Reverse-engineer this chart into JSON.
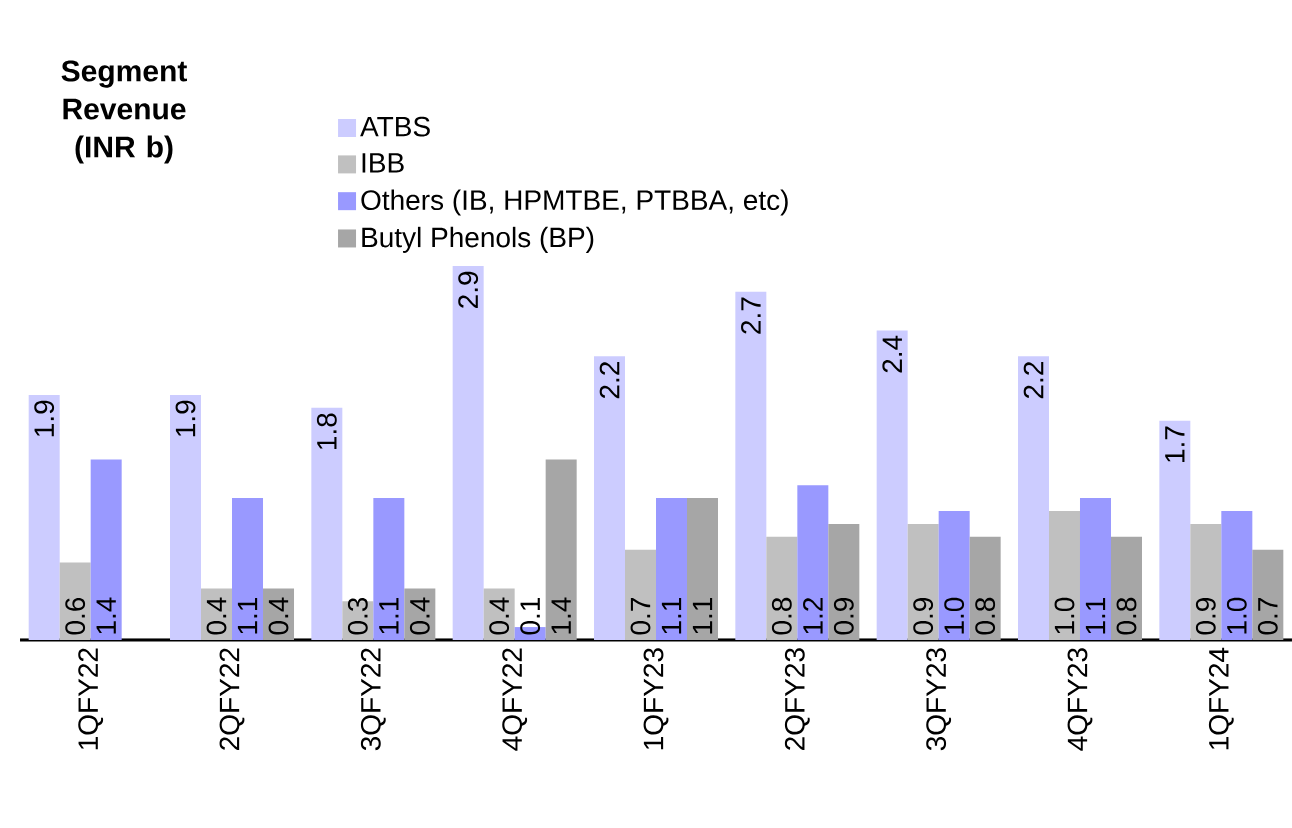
{
  "chart_data": {
    "type": "bar",
    "title": "Segment Revenue (INR b)",
    "categories": [
      "1QFY22",
      "2QFY22",
      "3QFY22",
      "4QFY22",
      "1QFY23",
      "2QFY23",
      "3QFY23",
      "4QFY23",
      "1QFY24"
    ],
    "series": [
      {
        "name": "ATBS",
        "color": "#ccccff",
        "values": [
          1.9,
          1.9,
          1.8,
          2.9,
          2.2,
          2.7,
          2.4,
          2.2,
          1.7
        ],
        "value_labels": [
          "1.9",
          "1.9",
          "1.8",
          "2.9",
          "2.2",
          "2.7",
          "2.4",
          "2.2",
          "1.7"
        ]
      },
      {
        "name": "IBB",
        "color": "#c0c0c0",
        "values": [
          0.6,
          0.4,
          0.3,
          0.4,
          0.7,
          0.8,
          0.9,
          1.0,
          0.9
        ],
        "value_labels": [
          "0.6",
          "0.4",
          "0.3",
          "0.4",
          "0.7",
          "0.8",
          "0.9",
          "1.0",
          "0.9"
        ]
      },
      {
        "name": "Others (IB, HPMTBE, PTBBA, etc)",
        "color": "#9999ff",
        "values": [
          1.4,
          1.1,
          1.1,
          0.1,
          1.1,
          1.2,
          1.0,
          1.1,
          1.0
        ],
        "value_labels": [
          "1.4",
          "1.1",
          "1.1",
          "0.1",
          "1.1",
          "1.2",
          "1.0",
          "1.1",
          "1.0"
        ]
      },
      {
        "name": "Butyl Phenols (BP)",
        "color": "#a6a6a6",
        "values": [
          null,
          0.4,
          0.4,
          1.4,
          1.1,
          0.9,
          0.8,
          0.8,
          0.7
        ],
        "value_labels": [
          null,
          "0.4",
          "0.4",
          "1.4",
          "1.1",
          "0.9",
          "0.8",
          "0.8",
          "0.7"
        ]
      }
    ],
    "legend": "top",
    "tick_labels": "x"
  }
}
